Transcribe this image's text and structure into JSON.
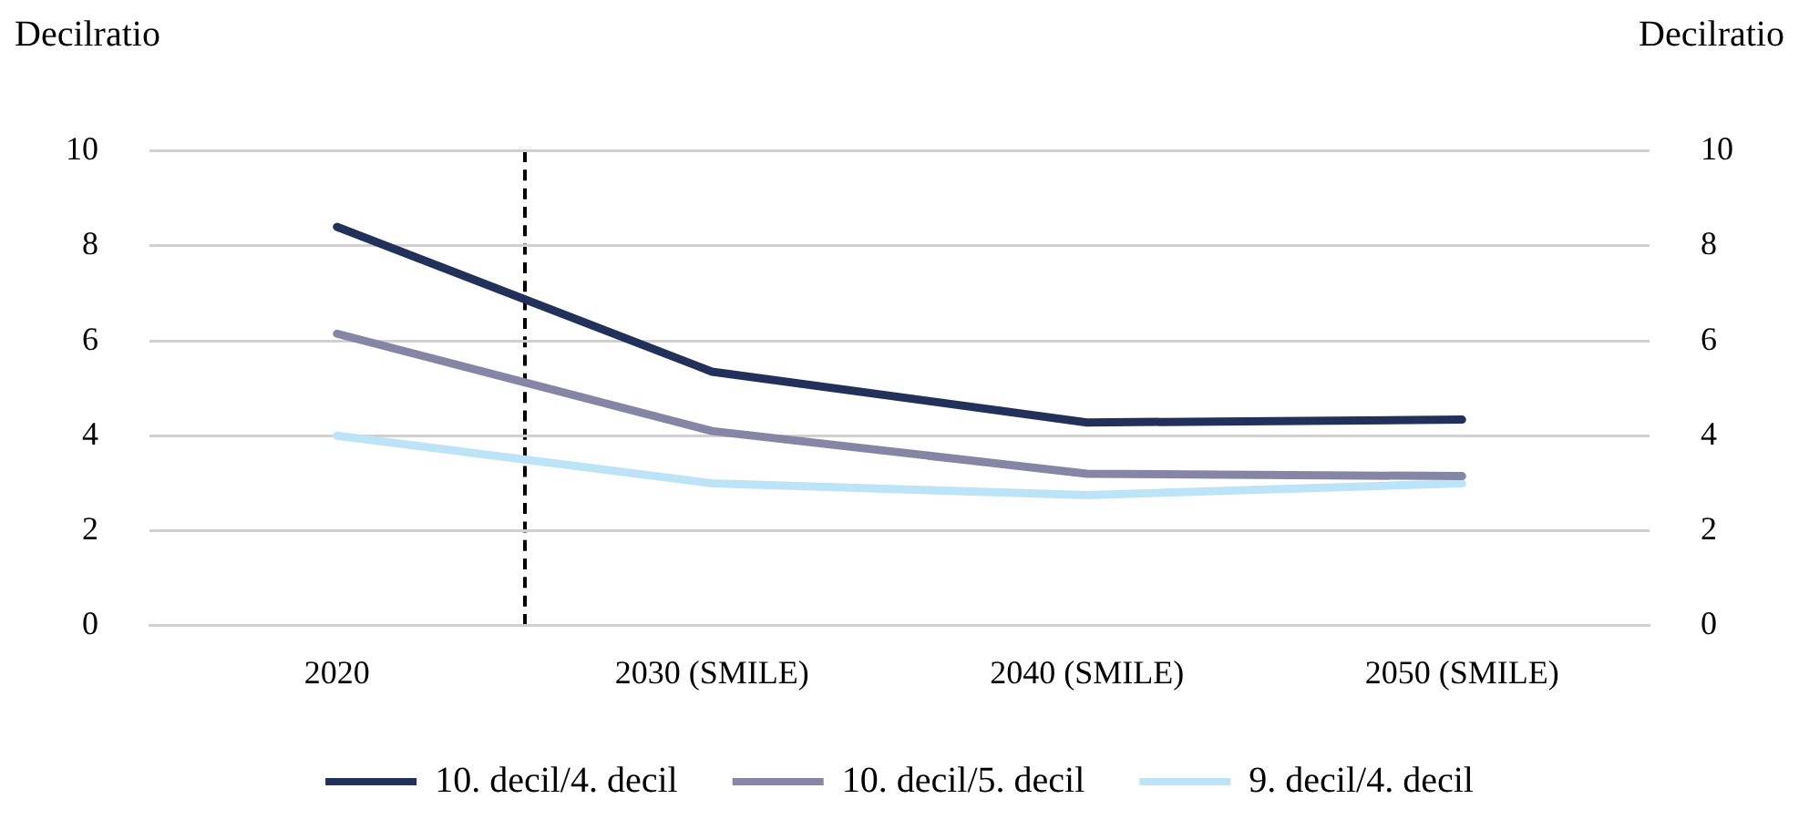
{
  "chart_data": {
    "type": "line",
    "ylabel": "Decilratio",
    "y2label": "Decilratio",
    "categories": [
      "2020",
      "2030 (SMILE)",
      "2040 (SMILE)",
      "2050 (SMILE)"
    ],
    "series": [
      {
        "name": "10. decil/4. decil",
        "color": "#22315a",
        "values": [
          8.4,
          5.35,
          4.28,
          4.34
        ]
      },
      {
        "name": "10. decil/5. decil",
        "color": "#8586a6",
        "values": [
          6.15,
          4.1,
          3.2,
          3.15
        ]
      },
      {
        "name": "9. decil/4. decil",
        "color": "#bde3f7",
        "values": [
          4.0,
          3.0,
          2.75,
          3.0
        ]
      }
    ],
    "ylim": [
      0,
      10
    ],
    "yticks": [
      0,
      2,
      4,
      6,
      8,
      10
    ],
    "y2lim": [
      0,
      10
    ],
    "y2ticks": [
      0,
      2,
      4,
      6,
      8,
      10
    ],
    "grid": "y",
    "legend": "bottom",
    "marker": "none",
    "line_style": "solid"
  }
}
